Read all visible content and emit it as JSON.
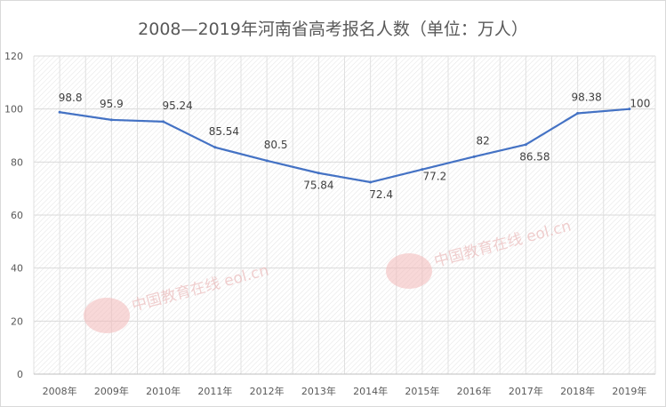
{
  "chart_data": {
    "type": "line",
    "title": "2008—2019年河南省高考报名人数（单位：万人）",
    "categories": [
      "2008年",
      "2009年",
      "2010年",
      "2011年",
      "2012年",
      "2013年",
      "2014年",
      "2015年",
      "2016年",
      "2017年",
      "2018年",
      "2019年"
    ],
    "values": [
      98.8,
      95.9,
      95.24,
      85.54,
      80.5,
      75.84,
      72.4,
      77.2,
      82,
      86.58,
      98.38,
      100
    ],
    "ylim": [
      0,
      120
    ],
    "yticks": [
      0,
      20,
      40,
      60,
      80,
      100,
      120
    ],
    "xlabel": "",
    "ylabel": "",
    "grid": true,
    "data_labels": true,
    "line_color": "#4472c4",
    "watermark": "中国教育在线 eol.cn"
  }
}
